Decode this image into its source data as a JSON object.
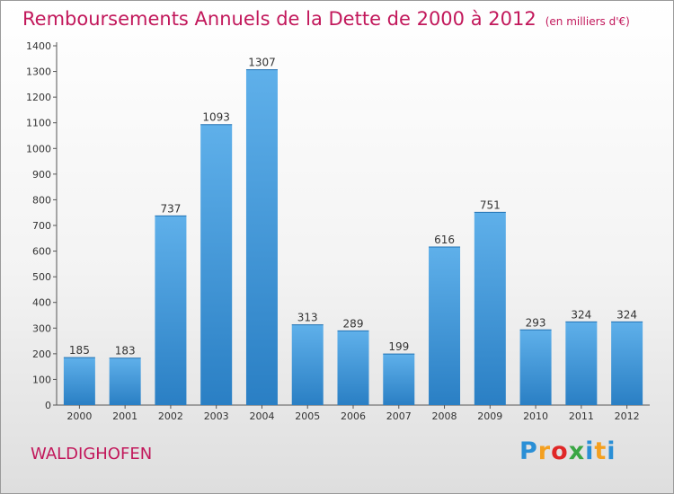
{
  "title": "Remboursements Annuels de la Dette de 2000 à 2012",
  "unit": "(en milliers d'€)",
  "commune": "WALDIGHOFEN",
  "logo": {
    "letters": [
      "P",
      "r",
      "o",
      "x",
      "i",
      "t",
      "i"
    ],
    "colors": [
      "#2a8fd6",
      "#f4a020",
      "#e02727",
      "#3aa644",
      "#2a8fd6",
      "#f4a020",
      "#2a8fd6"
    ]
  },
  "colors": {
    "title": "#c2185b",
    "bar_light": "#5fb0ea",
    "bar_dark": "#2a7fc4"
  },
  "chart_data": {
    "type": "bar",
    "categories": [
      "2000",
      "2001",
      "2002",
      "2003",
      "2004",
      "2005",
      "2006",
      "2007",
      "2008",
      "2009",
      "2010",
      "2011",
      "2012"
    ],
    "values": [
      185,
      183,
      737,
      1093,
      1307,
      313,
      289,
      199,
      616,
      751,
      293,
      324,
      324
    ],
    "title": "Remboursements Annuels de la Dette de 2000 à 2012",
    "xlabel": "",
    "ylabel": "",
    "ylim": [
      0,
      1400
    ],
    "yticks": [
      0,
      100,
      200,
      300,
      400,
      500,
      600,
      700,
      800,
      900,
      1000,
      1100,
      1200,
      1300,
      1400
    ],
    "grid": false,
    "legend": "none"
  }
}
